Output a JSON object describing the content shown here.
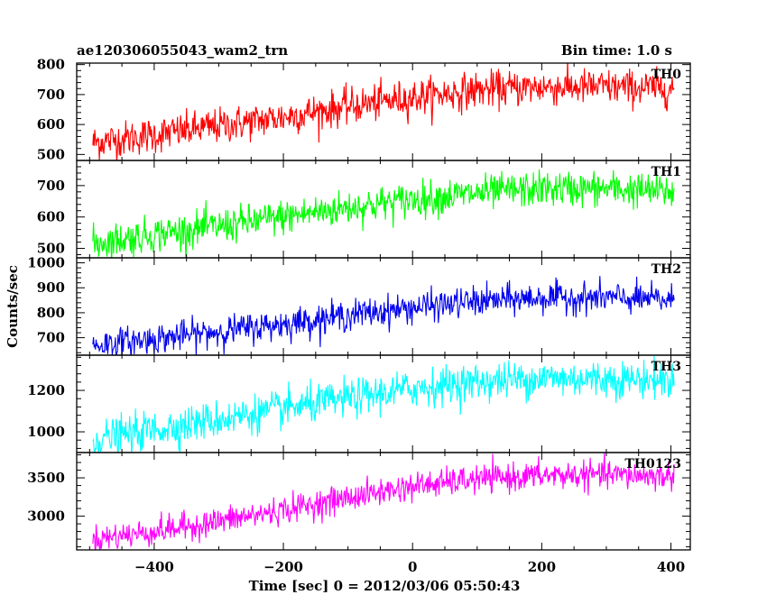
{
  "header": {
    "title": "ae120306055043_wam2_trn",
    "bin_time": "Bin time: 1.0 s"
  },
  "axes": {
    "xlabel": "Time [sec] 0 = 2012/03/06 05:50:43",
    "ylabel": "Counts/sec"
  },
  "chart_data": {
    "type": "line",
    "title": "ae120306055043_wam2_trn",
    "subtitle": "Bin time: 1.0 s",
    "xlabel": "Time [sec] 0 = 2012/03/06 05:50:43",
    "ylabel": "Counts/sec",
    "xlim": [
      -520,
      430
    ],
    "x_range": [
      -495,
      405
    ],
    "xticks": [
      -400,
      -200,
      0,
      200,
      400
    ],
    "x_tick_labels": [
      "−400",
      "−200",
      "0",
      "200",
      "400"
    ],
    "grid": false,
    "panels": [
      {
        "name": "TH0",
        "color": "#ff0000",
        "ylim": [
          480,
          805
        ],
        "yticks": [
          500,
          600,
          700,
          800
        ],
        "trend_x": [
          -495,
          -400,
          -300,
          -200,
          -100,
          0,
          100,
          200,
          300,
          405
        ],
        "trend_y": [
          540,
          565,
          595,
          625,
          660,
          690,
          715,
          725,
          725,
          720
        ],
        "noise": 30
      },
      {
        "name": "TH1",
        "color": "#00ff00",
        "ylim": [
          470,
          780
        ],
        "yticks": [
          500,
          600,
          700
        ],
        "trend_x": [
          -495,
          -400,
          -300,
          -200,
          -100,
          0,
          100,
          200,
          300,
          405
        ],
        "trend_y": [
          515,
          545,
          570,
          600,
          630,
          655,
          675,
          690,
          690,
          680
        ],
        "noise": 28
      },
      {
        "name": "TH2",
        "color": "#0000ee",
        "ylim": [
          630,
          1020
        ],
        "yticks": [
          700,
          800,
          900,
          1000
        ],
        "trend_x": [
          -495,
          -400,
          -300,
          -200,
          -100,
          0,
          100,
          200,
          300,
          405
        ],
        "trend_y": [
          670,
          695,
          725,
          755,
          790,
          820,
          845,
          860,
          860,
          850
        ],
        "noise": 30
      },
      {
        "name": "TH3",
        "color": "#00ffff",
        "ylim": [
          900,
          1370
        ],
        "yticks": [
          1000,
          1200
        ],
        "trend_x": [
          -495,
          -400,
          -300,
          -200,
          -100,
          0,
          100,
          200,
          300,
          405
        ],
        "trend_y": [
          960,
          1010,
          1060,
          1110,
          1160,
          1210,
          1240,
          1260,
          1255,
          1250
        ],
        "noise": 45
      },
      {
        "name": "TH0123",
        "color": "#ff00ff",
        "ylim": [
          2560,
          3830
        ],
        "yticks": [
          3000,
          3500
        ],
        "trend_x": [
          -495,
          -400,
          -300,
          -200,
          -100,
          0,
          100,
          200,
          300,
          405
        ],
        "trend_y": [
          2700,
          2800,
          2930,
          3080,
          3240,
          3390,
          3480,
          3530,
          3540,
          3520
        ],
        "noise": 90
      }
    ]
  }
}
